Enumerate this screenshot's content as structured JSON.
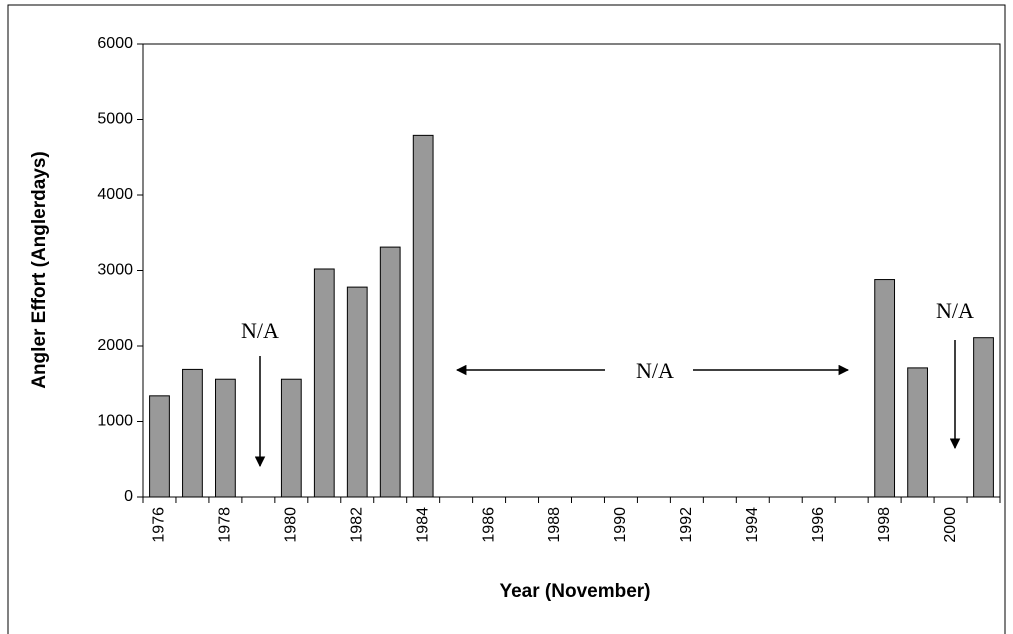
{
  "chart_data": {
    "type": "bar",
    "x_label": "Year (November)",
    "y_label": "Angler Effort (Anglerdays)",
    "categories": [
      "1976",
      null,
      "1978",
      null,
      "1980",
      null,
      "1982",
      null,
      "1984",
      null,
      "1986",
      null,
      "1988",
      null,
      "1990",
      null,
      "1992",
      null,
      "1994",
      null,
      "1996",
      null,
      "1998",
      null,
      "2000",
      null
    ],
    "values": [
      1340,
      1690,
      1560,
      null,
      1560,
      3020,
      2780,
      3310,
      4790,
      null,
      null,
      null,
      null,
      null,
      null,
      null,
      null,
      null,
      null,
      null,
      null,
      null,
      2880,
      1710,
      null,
      2110
    ],
    "color": "#999999",
    "ylim": [
      0,
      6000
    ],
    "yticks": [
      0,
      1000,
      2000,
      3000,
      4000,
      5000,
      6000
    ],
    "grid": false,
    "annotations": [
      "N/A",
      "N/A",
      "N/A"
    ]
  }
}
